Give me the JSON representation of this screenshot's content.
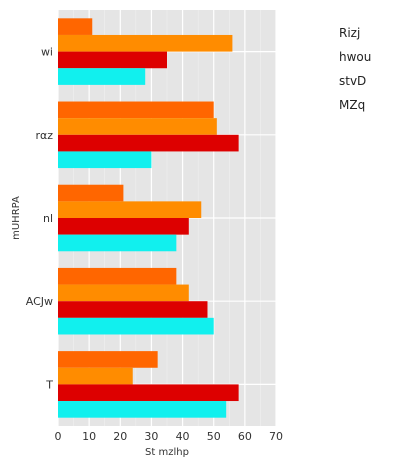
{
  "chart_data": {
    "type": "bar",
    "orientation": "horizontal",
    "categories": [
      "wi",
      "rαz",
      "nl",
      "ACJw",
      "T"
    ],
    "series": [
      {
        "name": "Rizj",
        "color": "#ff6600",
        "values": [
          11,
          50,
          21,
          38,
          32
        ]
      },
      {
        "name": "hwou",
        "color": "#ff8c00",
        "values": [
          56,
          51,
          46,
          42,
          24
        ]
      },
      {
        "name": "stvD",
        "color": "#dd0000",
        "values": [
          35,
          58,
          42,
          48,
          58
        ]
      },
      {
        "name": "MZq",
        "color": "#11f0ee",
        "values": [
          28,
          30,
          38,
          50,
          54
        ]
      }
    ],
    "xlabel": "St mzlhp",
    "ylabel": "mUHRPA",
    "xlim": [
      0,
      70
    ],
    "xticks": [
      "0",
      "10",
      "20",
      "30",
      "40",
      "50",
      "60",
      "70"
    ],
    "grid": true,
    "legend_position": "right"
  }
}
